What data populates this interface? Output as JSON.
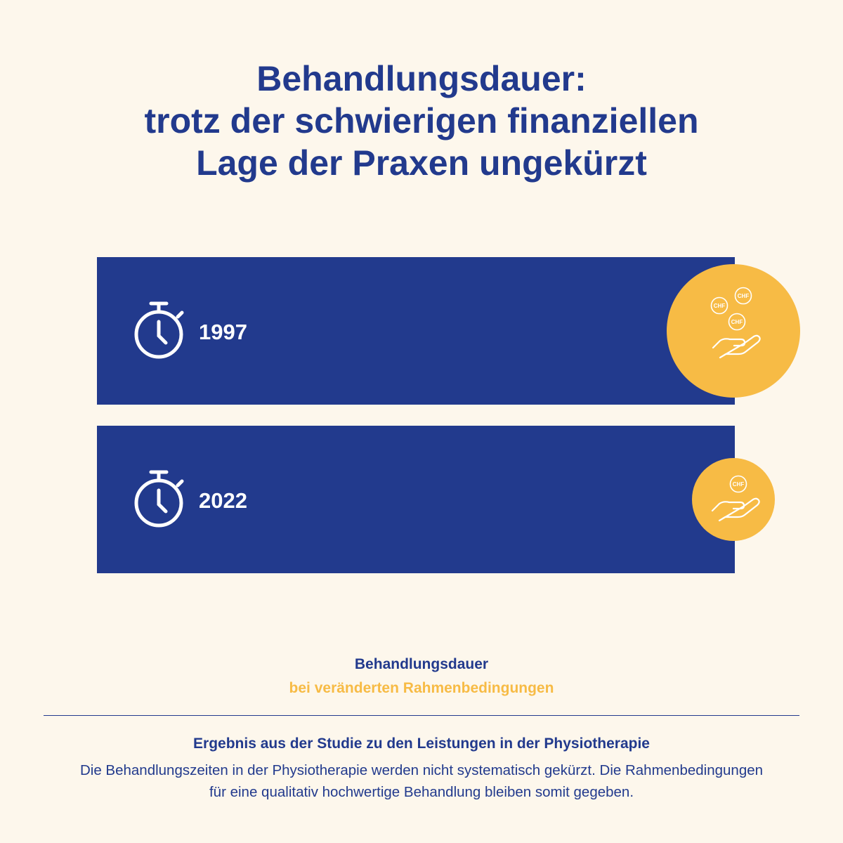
{
  "title": {
    "line1": "Behandlungsdauer:",
    "line2": "trotz der schwierigen finanziellen",
    "line3": "Lage der Praxen ungekürzt"
  },
  "chart_data": {
    "type": "bar",
    "orientation": "horizontal",
    "categories": [
      "1997",
      "2022"
    ],
    "series": [
      {
        "values": [
          1,
          1
        ]
      }
    ],
    "encoding": {
      "bar_length": "Behandlungsdauer (treatment duration, relative)",
      "circle_size": "financial conditions (CHF coins; relative)",
      "coins_per_category": [
        3,
        1
      ]
    },
    "title": "Behandlungsdauer: trotz der schwierigen finanziellen Lage der Praxen ungekürzt",
    "xlabel": "",
    "ylabel": "",
    "grid": false,
    "colors": {
      "bar": "#223a8d",
      "circle": "#f7bb45",
      "background": "#fdf7ec"
    }
  },
  "icons": {
    "duration": "stopwatch-icon",
    "money": "hand-with-chf-coins-icon",
    "coin_label": "CHF"
  },
  "legend": {
    "line1": "Behandlungsdauer",
    "line2": "bei veränderten Rahmenbedingungen"
  },
  "note": {
    "heading": "Ergebnis aus der Studie zu den Leistungen in der Physiotherapie",
    "body": "Die Behandlungszeiten in der Physiotherapie werden nicht systematisch gekürzt. Die Rahmenbedingungen für eine qualitativ hochwertige Behandlung bleiben somit gegeben."
  }
}
